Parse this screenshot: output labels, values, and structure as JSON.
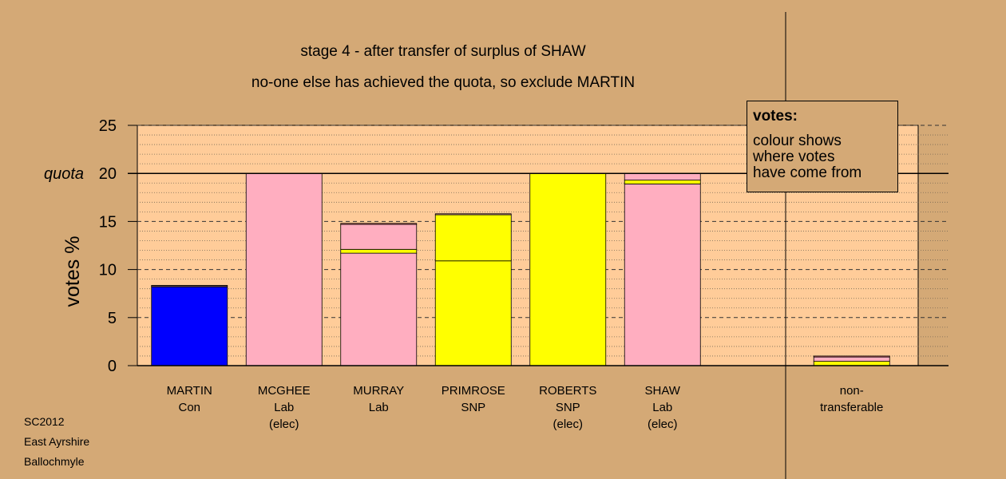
{
  "title_line1": "stage 4 - after transfer of surplus of SHAW",
  "title_line2": "no-one else has achieved the quota, so exclude MARTIN",
  "legend": {
    "title": "votes:",
    "lines": [
      "colour shows",
      "where votes",
      "have come from"
    ]
  },
  "footer": [
    "SC2012",
    "East Ayrshire",
    "Ballochmyle"
  ],
  "colors": {
    "background": "#d4a976",
    "plot_background": "#ffcc99",
    "Con": "#0000ff",
    "Lab": "#ffaec0",
    "SNP": "#ffff00",
    "Other": "#ff7f7f"
  },
  "chart_data": {
    "type": "bar",
    "stacked": true,
    "ylabel": "votes %",
    "ylim": [
      0,
      25
    ],
    "yticks": [
      0,
      5,
      10,
      15,
      20,
      25
    ],
    "quota": {
      "value": 20,
      "label": "quota"
    },
    "categories": [
      {
        "label": [
          "MARTIN",
          "Con"
        ],
        "segments": [
          {
            "party": "Con",
            "value": 8.2
          },
          {
            "party": "Lab",
            "value": 0.1
          },
          {
            "party": "SNP",
            "value": 0.05
          }
        ]
      },
      {
        "label": [
          "MCGHEE",
          "Lab",
          "(elec)"
        ],
        "segments": [
          {
            "party": "Lab",
            "value": 20.0
          }
        ]
      },
      {
        "label": [
          "MURRAY",
          "Lab"
        ],
        "segments": [
          {
            "party": "Lab",
            "value": 11.7
          },
          {
            "party": "SNP",
            "value": 0.4
          },
          {
            "party": "Lab",
            "value": 2.6
          },
          {
            "party": "Other",
            "value": 0.1
          }
        ]
      },
      {
        "label": [
          "PRIMROSE",
          "SNP"
        ],
        "segments": [
          {
            "party": "SNP",
            "value": 10.9
          },
          {
            "party": "SNP",
            "value": 4.8
          },
          {
            "party": "Lab",
            "value": 0.1
          }
        ]
      },
      {
        "label": [
          "ROBERTS",
          "SNP",
          "(elec)"
        ],
        "segments": [
          {
            "party": "SNP",
            "value": 20.0
          }
        ]
      },
      {
        "label": [
          "SHAW",
          "Lab",
          "(elec)"
        ],
        "segments": [
          {
            "party": "Lab",
            "value": 18.9
          },
          {
            "party": "SNP",
            "value": 0.4
          },
          {
            "party": "Lab",
            "value": 0.7
          }
        ]
      },
      {
        "label": [],
        "segments": []
      },
      {
        "label": [
          "non-",
          "transferable"
        ],
        "segments": [
          {
            "party": "SNP",
            "value": 0.45
          },
          {
            "party": "Lab",
            "value": 0.45
          },
          {
            "party": "Other",
            "value": 0.1
          }
        ]
      }
    ]
  }
}
